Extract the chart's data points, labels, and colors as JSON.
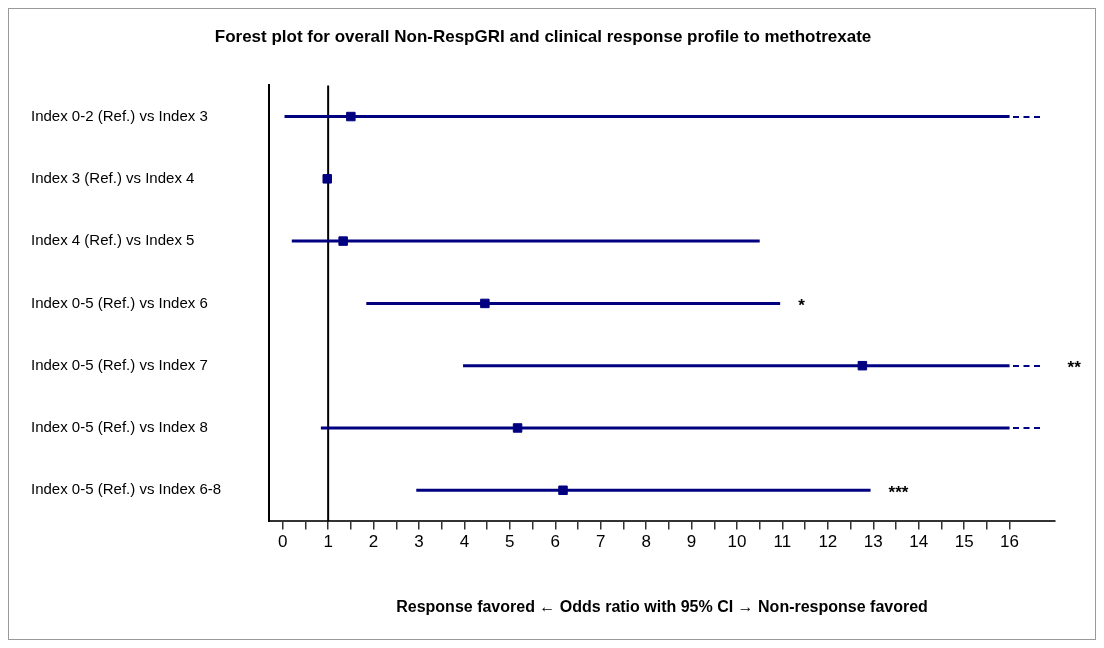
{
  "chart_data": {
    "type": "scatter",
    "orientation": "horizontal",
    "title": "Forest plot for overall Non-RespGRI and clinical response profile to methotrexate",
    "xlabel": "Response favored ← Odds ratio with 95% CI → Non-response favored",
    "categories": [
      "Index 0-2 (Ref.) vs Index 3",
      "Index 3 (Ref.) vs Index 4",
      "Index 4 (Ref.) vs Index 5",
      "Index 0-5 (Ref.) vs Index 6",
      "Index 0-5 (Ref.) vs Index 7",
      "Index 0-5 (Ref.) vs Index 8",
      "Index 0-5 (Ref.) vs Index 6-8"
    ],
    "values": [
      1.5,
      0.98,
      1.33,
      4.45,
      12.76,
      5.17,
      6.17
    ],
    "errors": [
      [
        0.04,
        16
      ],
      null,
      [
        0.2,
        10.5
      ],
      [
        1.84,
        10.95
      ],
      [
        3.97,
        16
      ],
      [
        0.84,
        16
      ],
      [
        2.94,
        12.94
      ]
    ],
    "color": "#000080",
    "marker": "square",
    "xlim": [
      -0.3,
      17
    ],
    "xticks": [
      0,
      {
        "value": 0.5,
        "label": null
      },
      1,
      {
        "value": 1.5,
        "label": null
      },
      2,
      {
        "value": 2.5,
        "label": null
      },
      3,
      {
        "value": 3.5,
        "label": null
      },
      4,
      {
        "value": 4.5,
        "label": null
      },
      5,
      {
        "value": 5.5,
        "label": null
      },
      6,
      {
        "value": 6.5,
        "label": null
      },
      7,
      {
        "value": 7.5,
        "label": null
      },
      8,
      {
        "value": 8.5,
        "label": null
      },
      9,
      {
        "value": 9.5,
        "label": null
      },
      10,
      {
        "value": 10.5,
        "label": null
      },
      11,
      {
        "value": 11.5,
        "label": null
      },
      12,
      {
        "value": 12.5,
        "label": null
      },
      13,
      {
        "value": 13.5,
        "label": null
      },
      14,
      {
        "value": 14.5,
        "label": null
      },
      15,
      {
        "value": 15.5,
        "label": null
      },
      16
    ],
    "ref_lines": [
      {
        "axis": "x",
        "value": 1,
        "color": "#000000"
      }
    ],
    "annotations": [
      "*",
      "**",
      "***"
    ]
  }
}
